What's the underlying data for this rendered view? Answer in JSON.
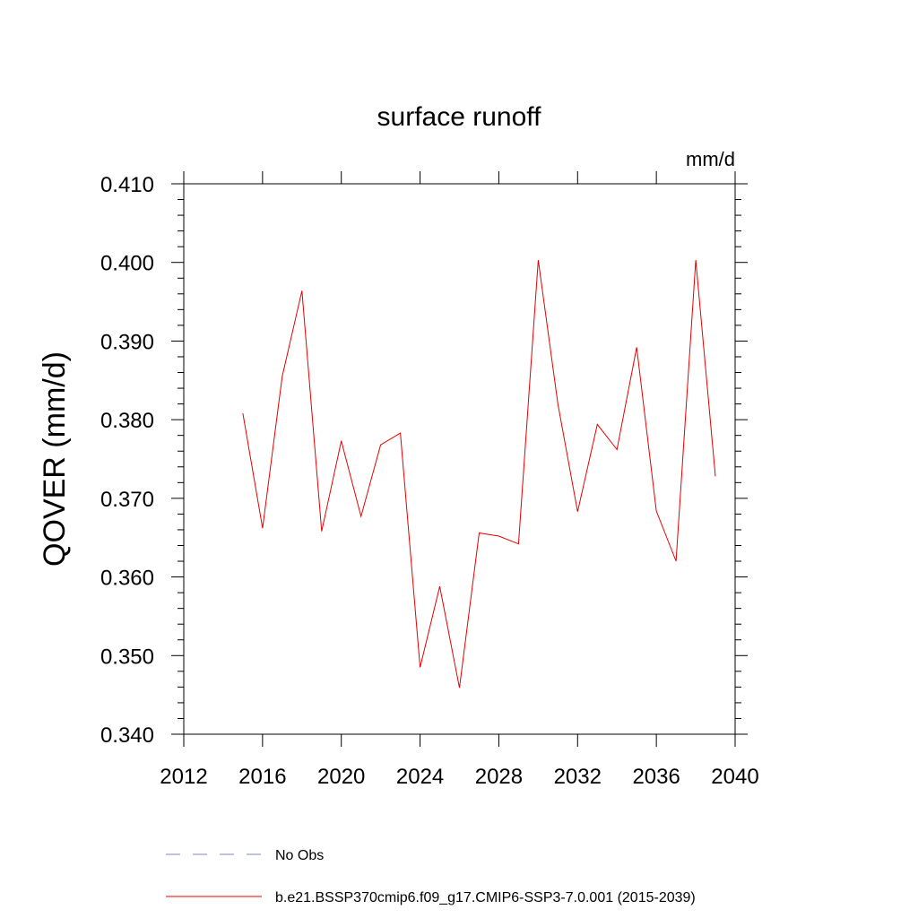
{
  "chart_data": {
    "type": "line",
    "title": "surface runoff",
    "units": "mm/d",
    "ylabel": "QOVER  (mm/d)",
    "xlabel": "",
    "xlim": [
      2012,
      2040
    ],
    "ylim": [
      0.34,
      0.41
    ],
    "x_ticks": [
      "2012",
      "2016",
      "2020",
      "2024",
      "2028",
      "2032",
      "2036",
      "2040"
    ],
    "y_ticks": [
      "0.340",
      "0.350",
      "0.360",
      "0.370",
      "0.380",
      "0.390",
      "0.400",
      "0.410"
    ],
    "grid": false,
    "legend_position": "bottom",
    "series": [
      {
        "name": "b.e21.BSSP370cmip6.f09_g17.CMIP6-SSP3-7.0.001 (2015-2039)",
        "color": "#e60000",
        "style": "solid",
        "x": [
          2015,
          2016,
          2017,
          2018,
          2019,
          2020,
          2021,
          2022,
          2023,
          2024,
          2025,
          2026,
          2027,
          2028,
          2029,
          2030,
          2031,
          2032,
          2033,
          2034,
          2035,
          2036,
          2037,
          2038,
          2039
        ],
        "y": [
          0.3808,
          0.3662,
          0.3855,
          0.3964,
          0.3658,
          0.3773,
          0.3677,
          0.3768,
          0.3783,
          0.3485,
          0.3588,
          0.3459,
          0.3656,
          0.3652,
          0.3642,
          0.4003,
          0.382,
          0.3683,
          0.3794,
          0.3762,
          0.3892,
          0.3684,
          0.362,
          0.4003,
          0.3728
        ]
      }
    ],
    "legend": [
      {
        "label": "No Obs",
        "color": "#8080c0",
        "style": "dashed"
      },
      {
        "label": "b.e21.BSSP370cmip6.f09_g17.CMIP6-SSP3-7.0.001 (2015-2039)",
        "color": "#e60000",
        "style": "solid"
      }
    ]
  }
}
